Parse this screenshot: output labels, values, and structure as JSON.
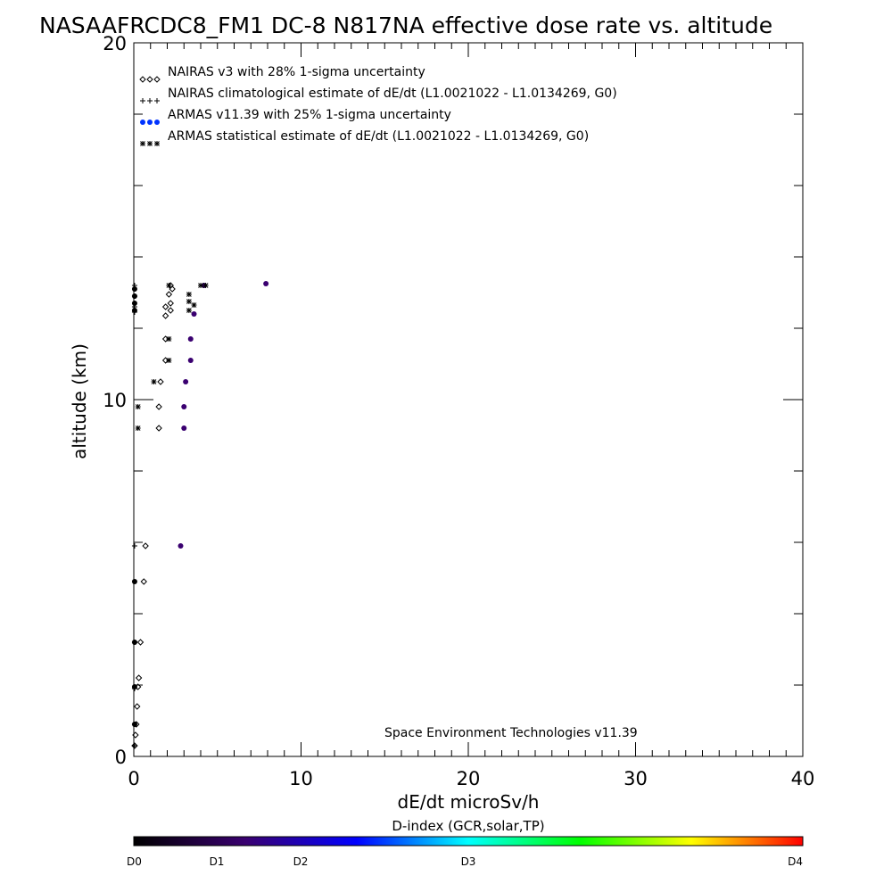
{
  "chart_data": {
    "type": "scatter",
    "title": "NASAAFRCDC8_FM1 DC-8   N817NA effective dose rate vs. altitude",
    "xlabel": "dE/dt microSv/h",
    "ylabel": "altitude (km)",
    "xlim": [
      0,
      40
    ],
    "ylim": [
      0,
      20
    ],
    "x_ticks": [
      "0",
      "10",
      "20",
      "30",
      "40"
    ],
    "y_ticks": [
      "0",
      "10",
      "20"
    ],
    "grid": false,
    "legend_position": "top-left",
    "footnote": "Space Environment Technologies v11.39",
    "colorbar": {
      "title": "D-index (GCR,solar,TP)",
      "tick_labels": [
        "D0",
        "D1",
        "D2",
        "D3",
        "D4"
      ],
      "tick_values": [
        0,
        0.5,
        1,
        2,
        4
      ],
      "colors": [
        "#000000",
        "#3a0070",
        "#0000ff",
        "#00ffff",
        "#00ff00",
        "#ffff00",
        "#ff0000"
      ]
    },
    "series": [
      {
        "name": "NAIRAS v3 with 28% 1-sigma uncertainty",
        "marker": "diamond",
        "color": "#000000",
        "points": [
          [
            2.2,
            13.2
          ],
          [
            2.3,
            13.1
          ],
          [
            2.1,
            12.95
          ],
          [
            2.2,
            12.7
          ],
          [
            1.9,
            12.6
          ],
          [
            2.2,
            12.5
          ],
          [
            1.9,
            12.35
          ],
          [
            1.9,
            11.7
          ],
          [
            1.9,
            11.1
          ],
          [
            1.6,
            10.5
          ],
          [
            1.5,
            9.8
          ],
          [
            1.5,
            9.2
          ],
          [
            0.7,
            5.9
          ],
          [
            0.6,
            4.9
          ],
          [
            0.4,
            3.2
          ],
          [
            0.3,
            2.2
          ],
          [
            0.25,
            1.95
          ],
          [
            0.2,
            1.4
          ],
          [
            0.15,
            0.9
          ],
          [
            0.1,
            0.6
          ],
          [
            0.05,
            0.3
          ]
        ]
      },
      {
        "name": "NAIRAS climatological estimate of dE/dt (L1.0021022 - L1.0134269, G0)",
        "marker": "plus",
        "color": "#000000",
        "points": [
          [
            0.05,
            13.2
          ],
          [
            0.05,
            12.9
          ],
          [
            0.05,
            12.6
          ],
          [
            0.05,
            12.45
          ],
          [
            0.05,
            5.9
          ],
          [
            0.05,
            3.2
          ],
          [
            0.05,
            1.9
          ],
          [
            0.05,
            0.9
          ],
          [
            0.05,
            0.3
          ]
        ]
      },
      {
        "name": "ARMAS v11.39 with 25% 1-sigma uncertainty",
        "marker": "dot",
        "color": "#0033ff",
        "legend_color": "#0033ff",
        "points": [
          [
            7.9,
            13.25
          ],
          [
            4.2,
            13.2
          ],
          [
            3.6,
            12.4
          ],
          [
            3.4,
            11.7
          ],
          [
            3.4,
            11.1
          ],
          [
            3.1,
            10.5
          ],
          [
            3.0,
            9.8
          ],
          [
            3.0,
            9.2
          ],
          [
            2.8,
            5.9
          ],
          [
            0.05,
            13.1
          ],
          [
            0.05,
            12.9
          ],
          [
            0.05,
            12.7
          ],
          [
            0.05,
            12.5
          ],
          [
            0.05,
            4.9
          ],
          [
            0.05,
            3.2
          ],
          [
            0.05,
            1.95
          ],
          [
            0.05,
            0.9
          ]
        ],
        "dindex": [
          0.55,
          0.3,
          0.3,
          0.3,
          0.3,
          0.3,
          0.3,
          0.3,
          0.3,
          0.2,
          0.2,
          0.2,
          0.2,
          0.2,
          0.2,
          0.2,
          0.2
        ]
      },
      {
        "name": "ARMAS statistical estimate of dE/dt (L1.0021022 - L1.0134269, G0)",
        "marker": "asterisk",
        "color": "#000000",
        "points": [
          [
            2.1,
            13.2
          ],
          [
            4.0,
            13.2
          ],
          [
            4.3,
            13.2
          ],
          [
            3.3,
            12.95
          ],
          [
            3.3,
            12.75
          ],
          [
            3.6,
            12.65
          ],
          [
            3.3,
            12.5
          ],
          [
            2.1,
            11.7
          ],
          [
            2.1,
            11.1
          ],
          [
            1.2,
            10.5
          ],
          [
            0.25,
            9.8
          ],
          [
            0.25,
            9.2
          ]
        ]
      }
    ]
  }
}
